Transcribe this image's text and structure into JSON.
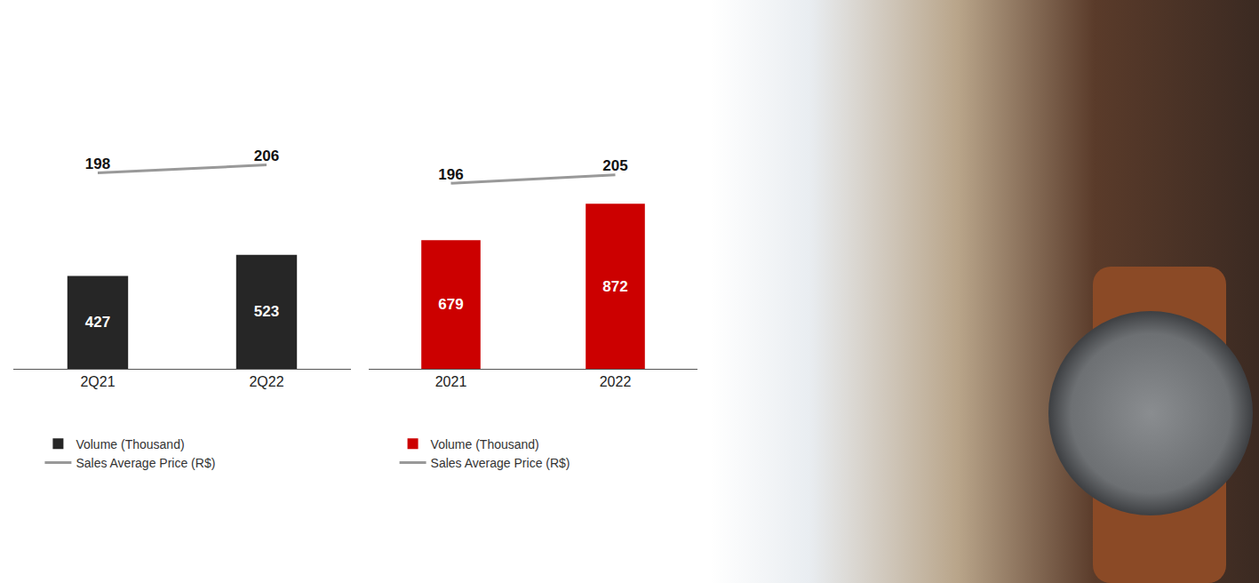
{
  "chart_data": [
    {
      "type": "bar",
      "categories": [
        "2Q21",
        "2Q22"
      ],
      "series": [
        {
          "name": "Volume (Thousand)",
          "type": "bar",
          "color": "#262626",
          "values": [
            427,
            523
          ]
        },
        {
          "name": "Sales Average Price (R$)",
          "type": "line",
          "color": "#999999",
          "axis": "y2",
          "values": [
            198,
            206
          ]
        }
      ],
      "ylim": [
        0,
        1000
      ],
      "y2lim": [
        0,
        220
      ],
      "grid": false,
      "tick_labels": "x",
      "data_labels": true,
      "legend": "bottom"
    },
    {
      "type": "bar",
      "categories": [
        "2021",
        "2022"
      ],
      "series": [
        {
          "name": "Volume (Thousand)",
          "type": "bar",
          "color": "#cc0000",
          "values": [
            679,
            872
          ]
        },
        {
          "name": "Sales Average Price (R$)",
          "type": "line",
          "color": "#999999",
          "axis": "y2",
          "values": [
            196,
            205
          ]
        }
      ],
      "ylim": [
        0,
        1150
      ],
      "y2lim": [
        0,
        230
      ],
      "grid": false,
      "tick_labels": "x",
      "data_labels": true,
      "legend": "bottom"
    }
  ]
}
